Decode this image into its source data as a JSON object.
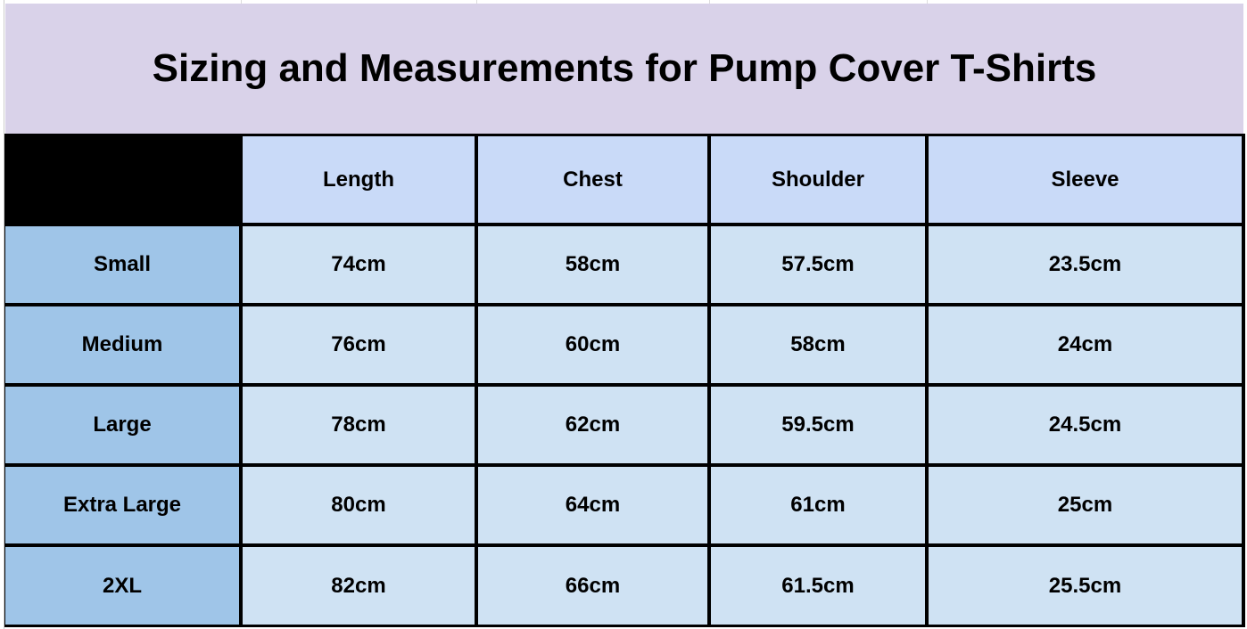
{
  "title": "Sizing and Measurements for Pump Cover T-Shirts",
  "table": {
    "header": [
      "Length",
      "Chest",
      "Shoulder",
      "Sleeve"
    ],
    "rows": [
      [
        "Small",
        "74cm",
        "58cm",
        "57.5cm",
        "23.5cm"
      ],
      [
        "Medium",
        "76cm",
        "60cm",
        "58cm",
        "24cm"
      ],
      [
        "Large",
        "78cm",
        "62cm",
        "59.5cm",
        "24.5cm"
      ],
      [
        "Extra Large",
        "80cm",
        "64cm",
        "61cm",
        "25cm"
      ],
      [
        "2XL",
        "82cm",
        "66cm",
        "61.5cm",
        "25.5cm"
      ]
    ]
  }
}
